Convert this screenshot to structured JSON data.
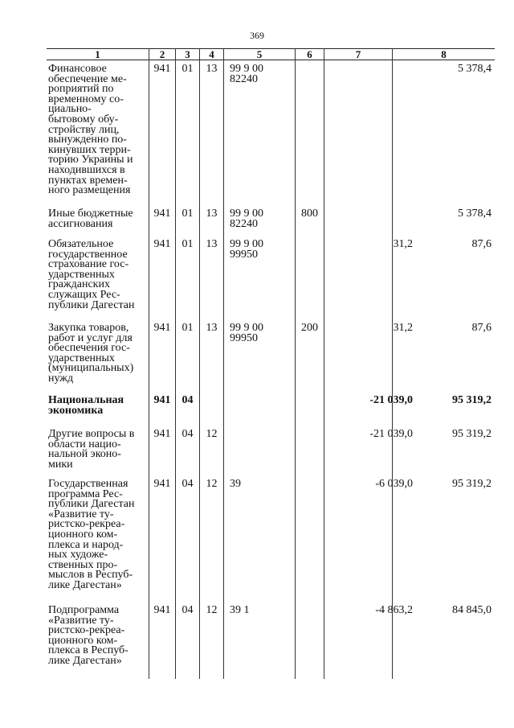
{
  "page_number": "369",
  "columns": [
    "1",
    "2",
    "3",
    "4",
    "5",
    "6",
    "7",
    "8"
  ],
  "rows": [
    {
      "name": "Финансовое\nобеспечение ме-\nроприятий по\nвременному со-\nциально-\nбытовому обу-\nстройству лиц,\nвынужденно по-\nкинувших терри-\nторию Украины и\nнаходившихся в\nпунктах времен-\nного размещения",
      "c2": "941",
      "c3": "01",
      "c4": "13",
      "c5": "99 9 00 82240",
      "c6": "",
      "c7": "",
      "c8": "5 378,4",
      "bold": false
    },
    {
      "name": "Иные бюджетные\nассигнования",
      "c2": "941",
      "c3": "01",
      "c4": "13",
      "c5": "99 9 00 82240",
      "c6": "800",
      "c7": "",
      "c8": "5 378,4",
      "bold": false
    },
    {
      "name": "Обязательное\nгосударственное\nстрахование гос-\nударственных\nгражданских\nслужащих Рес-\nпублики Дагестан",
      "c2": "941",
      "c3": "01",
      "c4": "13",
      "c5": "99 9 00 99950",
      "c6": "",
      "c7": "31,2",
      "c8": "87,6",
      "bold": false
    },
    {
      "name": "Закупка товаров,\nработ и услуг для\nобеспечения гос-\nударственных\n(муниципальных)\nнужд",
      "c2": "941",
      "c3": "01",
      "c4": "13",
      "c5": "99 9 00 99950",
      "c6": "200",
      "c7": "31,2",
      "c8": "87,6",
      "bold": false
    },
    {
      "name": "Национальная\nэкономика",
      "c2": "941",
      "c3": "04",
      "c4": "",
      "c5": "",
      "c6": "",
      "c7": "-21 039,0",
      "c8": "95 319,2",
      "bold": true
    },
    {
      "name": "Другие вопросы в\nобласти нацио-\nнальной эконо-\nмики",
      "c2": "941",
      "c3": "04",
      "c4": "12",
      "c5": "",
      "c6": "",
      "c7": "-21 039,0",
      "c8": "95 319,2",
      "bold": false
    },
    {
      "name": "Государственная\nпрограмма Рес-\nпублики Дагестан\n«Развитие ту-\nристско-рекреа-\nционного ком-\nплекса и народ-\nных художе-\nственных про-\nмыслов в Респуб-\nлике Дагестан»",
      "c2": "941",
      "c3": "04",
      "c4": "12",
      "c5": "39",
      "c6": "",
      "c7": "-6 039,0",
      "c8": "95 319,2",
      "bold": false
    },
    {
      "name": "Подпрограмма\n«Развитие ту-\nристско-рекреа-\nционного ком-\nплекса в Респуб-\nлике Дагестан»",
      "c2": "941",
      "c3": "04",
      "c4": "12",
      "c5": "39 1",
      "c6": "",
      "c7": "-4 863,2",
      "c8": "84 845,0",
      "bold": false
    }
  ]
}
